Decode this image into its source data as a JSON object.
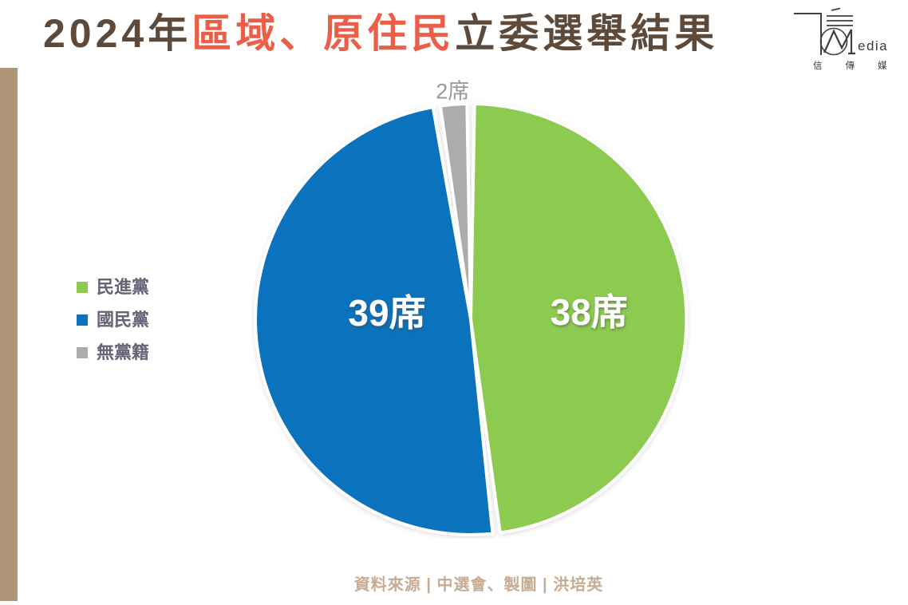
{
  "page": {
    "background_color": "#FFFFFF",
    "accent_bar_color": "#B09679"
  },
  "header": {
    "title_parts": [
      {
        "text": "2024年",
        "color": "#5D4A3A"
      },
      {
        "text": "區域、原住民",
        "color": "#EB5F49"
      },
      {
        "text": "立委選舉結果",
        "color": "#5D4A3A"
      }
    ]
  },
  "logo": {
    "latin_suffix": "edia",
    "name_cn": "信傳媒",
    "color": "#3A3A3A"
  },
  "chart_data": {
    "type": "pie",
    "title": "2024年區域、原住民立委選舉結果",
    "unit": "席",
    "total_seats": 79,
    "start_angle_deg": 0,
    "direction": "clockwise",
    "pad_angle_deg": 1.0,
    "legend_position": "left",
    "slices": [
      {
        "label": "民進黨",
        "value": 38,
        "display": "38席",
        "color": "#8CCB4F",
        "label_color": "#FFFFFF",
        "label_placement": "inside",
        "label_r_frac": 0.55,
        "label_angle_deg": null
      },
      {
        "label": "國民黨",
        "value": 39,
        "display": "39席",
        "color": "#0B72BE",
        "label_color": "#FFFFFF",
        "label_placement": "inside",
        "label_r_frac": 0.39,
        "label_angle_deg": 274.4
      },
      {
        "label": "無黨籍",
        "value": 2,
        "display": "2席",
        "color": "#ACACAC",
        "label_color": "#9A9A9A",
        "label_placement": "outside",
        "label_r_frac": 1.06,
        "label_angle_deg": null
      }
    ]
  },
  "legend_text_color": "#666277",
  "footer": {
    "credit": "資料來源 | 中選會、製圖 | 洪培英",
    "color": "#C7AB92"
  }
}
